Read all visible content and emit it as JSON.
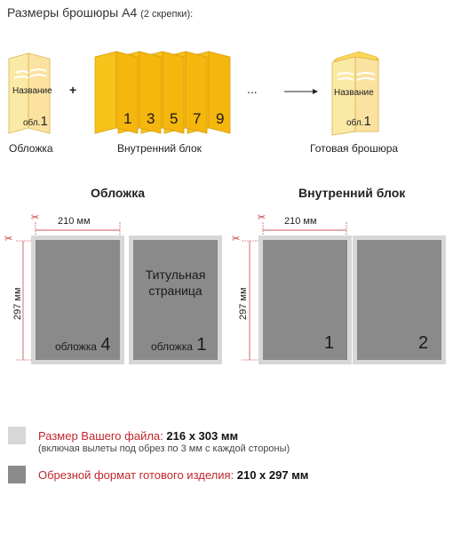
{
  "header": {
    "title": "Размеры брошюры А4",
    "subtitle": "(2 скрепки):"
  },
  "steps": {
    "cover": {
      "caption": "Обложка",
      "name_label": "Название",
      "page_prefix": "обл.",
      "page_num": "1"
    },
    "plus": "+",
    "block": {
      "caption": "Внутренний блок",
      "pages": [
        "1",
        "3",
        "5",
        "7",
        "9"
      ]
    },
    "ellipsis": "...",
    "result": {
      "caption": "Готовая брошюра",
      "name_label": "Название",
      "page_prefix": "обл.",
      "page_num": "1"
    }
  },
  "sections": {
    "cover": {
      "title": "Обложка",
      "width_label": "210 мм",
      "height_label": "297 мм",
      "pages": [
        {
          "label": "обложка",
          "num": "4",
          "title": ""
        },
        {
          "label": "обложка",
          "num": "1",
          "title_line1": "Титульная",
          "title_line2": "страница"
        }
      ]
    },
    "block": {
      "title": "Внутренний блок",
      "width_label": "210 мм",
      "height_label": "297 мм",
      "pages": [
        {
          "num": "1"
        },
        {
          "num": "2"
        }
      ]
    }
  },
  "legend": [
    {
      "label": "Размер Вашего файла:",
      "value": "216 x 303 мм",
      "note": "(включая вылеты под обрез по 3 мм с каждой стороны)",
      "color": "#d7d7d7"
    },
    {
      "label": "Обрезной формат готового изделия:",
      "value": "210 x 297 мм",
      "color": "#8a8a8a"
    }
  ],
  "colors": {
    "yellow": "#f7c21a",
    "pale_yellow": "#fbe9a6",
    "accent_red": "#c0282d"
  }
}
